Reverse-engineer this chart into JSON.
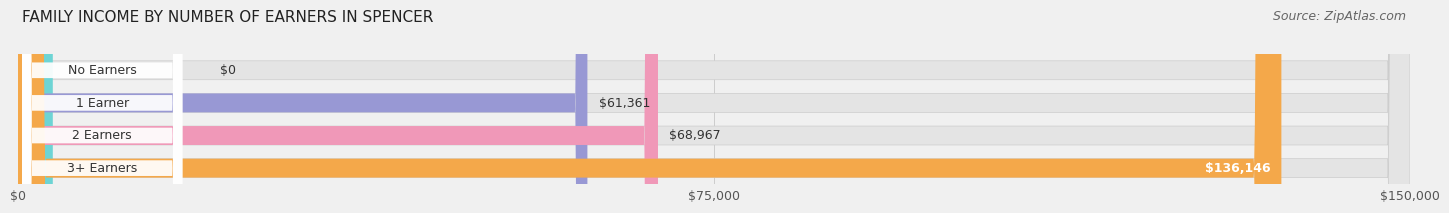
{
  "title": "FAMILY INCOME BY NUMBER OF EARNERS IN SPENCER",
  "source": "Source: ZipAtlas.com",
  "categories": [
    "No Earners",
    "1 Earner",
    "2 Earners",
    "3+ Earners"
  ],
  "values": [
    0,
    61361,
    68967,
    136146
  ],
  "bar_colors": [
    "#6dd4d4",
    "#9898d4",
    "#f098b8",
    "#f4a84a"
  ],
  "value_labels": [
    "$0",
    "$61,361",
    "$68,967",
    "$136,146"
  ],
  "xlim": [
    0,
    150000
  ],
  "xtick_labels": [
    "$0",
    "$75,000",
    "$150,000"
  ],
  "xtick_vals": [
    0,
    75000,
    150000
  ],
  "bg_color": "#f0f0f0",
  "bar_bg_color": "#e4e4e4",
  "label_bg_color": "#ffffff",
  "title_fontsize": 11,
  "source_fontsize": 9,
  "tick_fontsize": 9,
  "value_fontsize": 9,
  "label_fontsize": 9,
  "bar_height": 0.58
}
